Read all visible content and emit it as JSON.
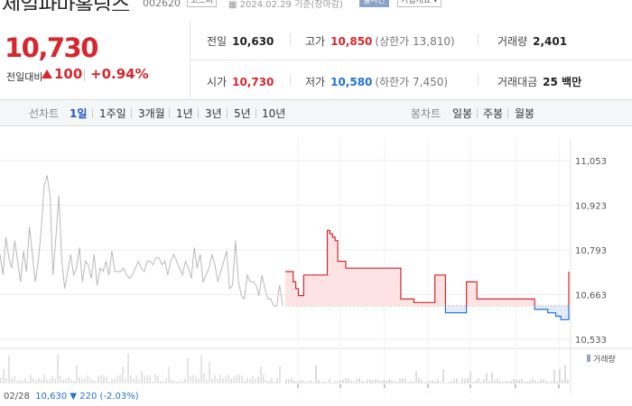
{
  "header": {
    "stock_name": "제일파마홀딩스",
    "stock_code": "002620",
    "market": "코스피",
    "date_text": "2024.02.29  기준(장마감)",
    "realtime_label": "실시간",
    "company_info_label": "기업개요 ▾"
  },
  "price": {
    "current": "10,730",
    "change_label": "전일대비",
    "change_amount": "100",
    "change_pct": "+0.94%",
    "up_color": "#d9262d",
    "down_color": "#1f6fd6"
  },
  "info": {
    "prev_close_label": "전일",
    "prev_close": "10,630",
    "high_label": "고가",
    "high": "10,850",
    "upper_limit": "(상한가 13,810)",
    "volume_label": "거래량",
    "volume": "2,401",
    "open_label": "시가",
    "open": "10,730",
    "low_label": "저가",
    "low": "10,580",
    "lower_limit": "(하한가 7,450)",
    "trade_value_label": "거래대금",
    "trade_value": "25 백만"
  },
  "tabs": {
    "line_header": "선차트",
    "line_items": [
      "1일",
      "1주일",
      "3개월",
      "1년",
      "3년",
      "5년",
      "10년"
    ],
    "selected": "1일",
    "candle_header": "봉차트",
    "candle_items": [
      "일봉",
      "주봉",
      "월봉"
    ]
  },
  "chart_data": {
    "type": "line",
    "x_tick_labels": [
      "02/28",
      "02/29",
      "10:00",
      "11:00",
      "12:00",
      "13:00",
      "14:00",
      "15:00"
    ],
    "y_ticks": [
      11053,
      10923,
      10793,
      10663,
      10533
    ],
    "ylim": [
      10533,
      11053
    ],
    "baseline": 10630,
    "prev_day_series": {
      "name": "02/28",
      "values": [
        10780,
        10720,
        10830,
        10770,
        10740,
        10820,
        10760,
        10700,
        10790,
        10730,
        10860,
        10780,
        10700,
        10760,
        10850,
        10980,
        11010,
        10950,
        10720,
        10830,
        10950,
        10760,
        10680,
        10730,
        10780,
        10720,
        10740,
        10800,
        10700,
        10760,
        10750,
        10710,
        10780,
        10690,
        10740,
        10730,
        10760,
        10720,
        10790,
        10730,
        10730,
        10730,
        10740,
        10720,
        10710,
        10720,
        10740,
        10760,
        10740,
        10730,
        10760,
        10760,
        10750,
        10770,
        10770,
        10750,
        10760,
        10720,
        10760,
        10780,
        10760,
        10740,
        10720,
        10760,
        10740,
        10710,
        10800,
        10740,
        10780,
        10700,
        10720,
        10740,
        10780,
        10750,
        10700,
        10730,
        10760,
        10790,
        10680,
        10690,
        10820,
        10700,
        10660,
        10650,
        10720,
        10700,
        10700,
        10690,
        10660,
        10720,
        10680,
        10650,
        10650,
        10630,
        10630,
        10690,
        10630
      ]
    },
    "intraday_series": {
      "name": "02/29",
      "values": [
        10730,
        10730,
        10730,
        10700,
        10680,
        10660,
        10660,
        10720,
        10720,
        10720,
        10720,
        10720,
        10720,
        10720,
        10720,
        10720,
        10850,
        10840,
        10830,
        10820,
        10760,
        10760,
        10760,
        10740,
        10740,
        10740,
        10740,
        10740,
        10740,
        10740,
        10740,
        10740,
        10740,
        10740,
        10740,
        10740,
        10740,
        10740,
        10740,
        10740,
        10740,
        10740,
        10740,
        10740,
        10650,
        10650,
        10650,
        10650,
        10650,
        10640,
        10640,
        10640,
        10640,
        10640,
        10640,
        10640,
        10640,
        10720,
        10720,
        10720,
        10720,
        10610,
        10610,
        10610,
        10610,
        10610,
        10610,
        10610,
        10610,
        10700,
        10700,
        10700,
        10700,
        10650,
        10650,
        10650,
        10650,
        10650,
        10650,
        10650,
        10650,
        10650,
        10650,
        10650,
        10650,
        10650,
        10650,
        10650,
        10650,
        10650,
        10650,
        10650,
        10650,
        10650,
        10650,
        10620,
        10620,
        10620,
        10620,
        10620,
        10610,
        10610,
        10610,
        10600,
        10600,
        10590,
        10590,
        10590,
        10730
      ]
    },
    "volume_label": "거래량",
    "prev_day_info": {
      "date": "02/28",
      "close": "10,630",
      "change": "▼ 220 (-2.03%)"
    }
  }
}
